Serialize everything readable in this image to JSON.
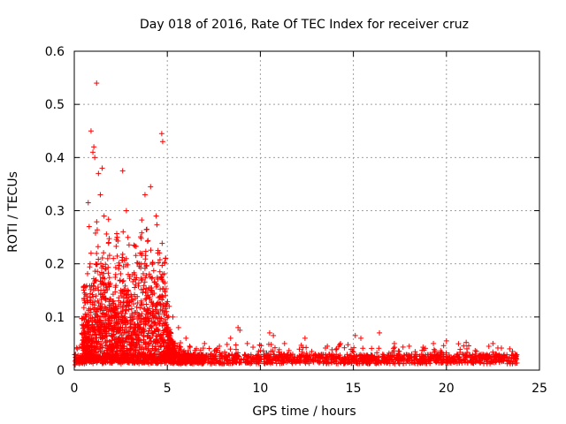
{
  "chart_data": {
    "type": "scatter",
    "title": "Day 018 of 2016, Rate Of TEC Index for receiver cruz",
    "xlabel": "GPS time / hours",
    "ylabel": "ROTI / TECUs",
    "xlim": [
      0,
      25
    ],
    "ylim": [
      0,
      0.6
    ],
    "xticks": [
      0,
      5,
      10,
      15,
      20,
      25
    ],
    "xtick_labels": [
      "0",
      "5",
      "10",
      "15",
      "20",
      "25"
    ],
    "yticks": [
      0,
      0.1,
      0.2,
      0.3,
      0.4,
      0.5,
      0.6
    ],
    "ytick_labels": [
      "0",
      "0.1",
      "0.2",
      "0.3",
      "0.4",
      "0.5",
      "0.6"
    ],
    "grid": true,
    "marker": "+",
    "color": "#ff0000",
    "series": [
      {
        "name": "ROTI",
        "points": [
          [
            1.2,
            0.54
          ],
          [
            0.9,
            0.45
          ],
          [
            4.7,
            0.445
          ],
          [
            4.75,
            0.43
          ],
          [
            1.05,
            0.42
          ],
          [
            1.0,
            0.41
          ],
          [
            1.1,
            0.4
          ],
          [
            1.5,
            0.38
          ],
          [
            2.6,
            0.375
          ],
          [
            1.3,
            0.37
          ],
          [
            4.1,
            0.345
          ],
          [
            1.4,
            0.33
          ],
          [
            3.8,
            0.33
          ],
          [
            0.75,
            0.315
          ],
          [
            2.8,
            0.3
          ],
          [
            4.4,
            0.29
          ],
          [
            1.6,
            0.29
          ],
          [
            0.8,
            0.27
          ],
          [
            3.9,
            0.265
          ],
          [
            2.3,
            0.25
          ],
          [
            1.85,
            0.24
          ],
          [
            3.2,
            0.235
          ],
          [
            4.5,
            0.225
          ],
          [
            0.9,
            0.22
          ],
          [
            2.1,
            0.21
          ],
          [
            3.5,
            0.2
          ],
          [
            0.85,
            0.2
          ],
          [
            1.7,
            0.19
          ],
          [
            4.6,
            0.185
          ],
          [
            2.9,
            0.18
          ],
          [
            0.5,
            0.155
          ],
          [
            0.55,
            0.145
          ],
          [
            3.3,
            0.17
          ],
          [
            1.9,
            0.16
          ],
          [
            4.9,
            0.14
          ],
          [
            2.5,
            0.15
          ],
          [
            5.1,
            0.12
          ],
          [
            3.6,
            0.13
          ],
          [
            4.2,
            0.12
          ],
          [
            1.25,
            0.13
          ],
          [
            5.3,
            0.1
          ],
          [
            0.6,
            0.1
          ],
          [
            2.7,
            0.09
          ],
          [
            5.6,
            0.08
          ],
          [
            3.1,
            0.1
          ],
          [
            1.5,
            0.085
          ],
          [
            6.0,
            0.06
          ],
          [
            6.2,
            0.045
          ],
          [
            8.8,
            0.08
          ],
          [
            8.9,
            0.075
          ],
          [
            7.0,
            0.05
          ],
          [
            7.8,
            0.045
          ],
          [
            8.4,
            0.06
          ],
          [
            9.3,
            0.05
          ],
          [
            10.5,
            0.07
          ],
          [
            10.7,
            0.065
          ],
          [
            11.3,
            0.05
          ],
          [
            12.4,
            0.06
          ],
          [
            13.6,
            0.045
          ],
          [
            14.1,
            0.04
          ],
          [
            15.1,
            0.065
          ],
          [
            15.4,
            0.06
          ],
          [
            16.4,
            0.07
          ],
          [
            17.2,
            0.05
          ],
          [
            18.0,
            0.045
          ],
          [
            19.3,
            0.05
          ],
          [
            20.0,
            0.055
          ],
          [
            21.1,
            0.04
          ],
          [
            22.5,
            0.05
          ],
          [
            23.4,
            0.04
          ],
          [
            23.7,
            0.03
          ],
          [
            0.1,
            0.02
          ],
          [
            0.05,
            0.01
          ]
        ]
      }
    ],
    "density_note": "dense band of points between 0.005 and 0.035 across 0–23.8 h; heavy scatter up to ~0.3 between 0.5–5.5 h"
  }
}
